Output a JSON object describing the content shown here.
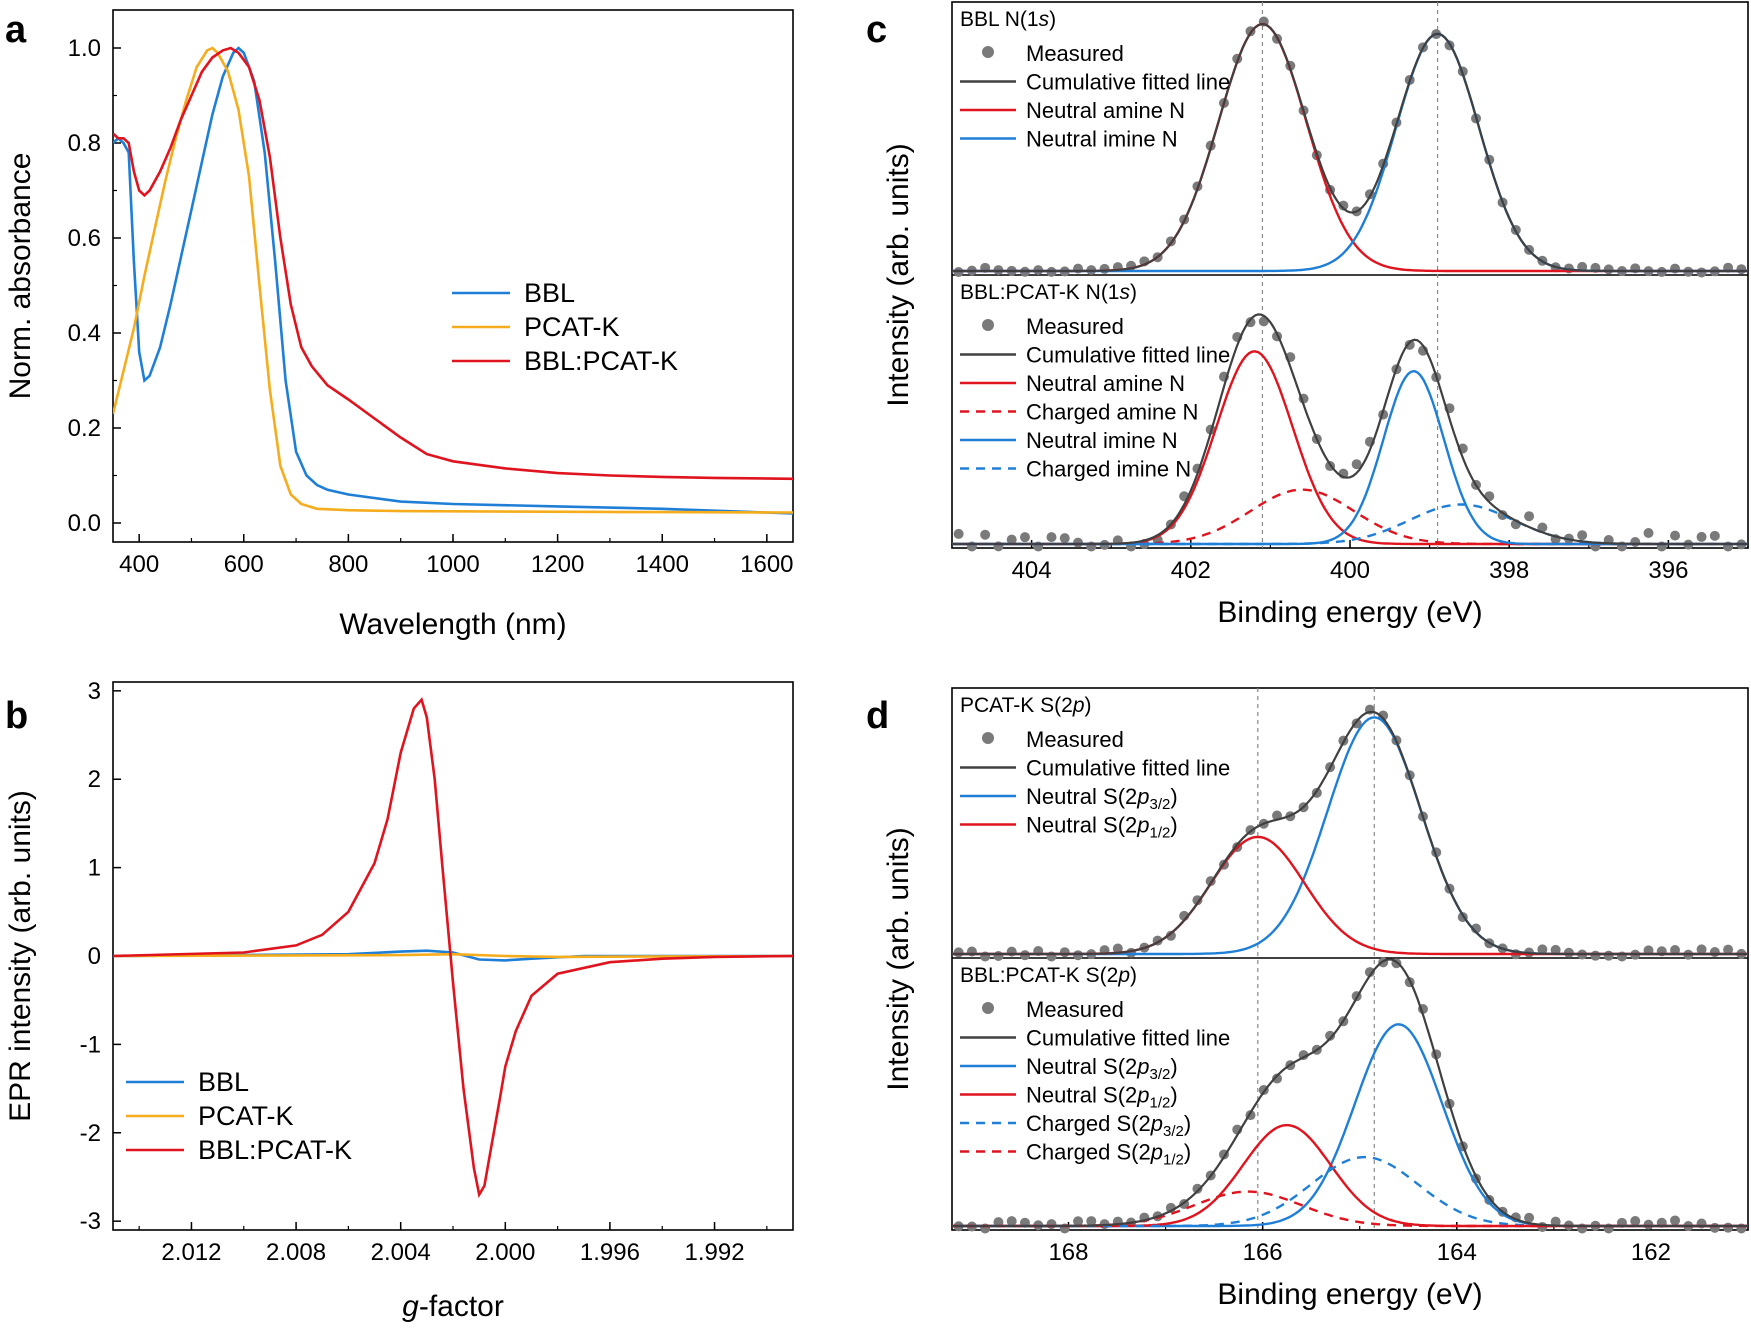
{
  "colors": {
    "blue": "#1f7fd6",
    "orange": "#f5ad1d",
    "red": "#e0141e",
    "dark": "#404040",
    "marker": "#7a7a7a"
  },
  "panels": {
    "a": {
      "label": "a",
      "chart_data": {
        "type": "line",
        "xlabel": "Wavelength (nm)",
        "ylabel": "Norm. absorbance",
        "xlim": [
          350,
          1650
        ],
        "ylim": [
          -0.04,
          1.08
        ],
        "xticks": [
          400,
          600,
          800,
          1000,
          1200,
          1400,
          1600
        ],
        "yticks": [
          0.0,
          0.2,
          0.4,
          0.6,
          0.8,
          1.0
        ],
        "xtick_labels": [
          "400",
          "600",
          "800",
          "1000",
          "1200",
          "1400",
          "1600"
        ],
        "ytick_labels": [
          "0.0",
          "0.2",
          "0.4",
          "0.6",
          "0.8",
          "1.0"
        ],
        "legend": "center-right",
        "series": [
          {
            "name": "BBL",
            "color": "blue",
            "x": [
              350,
              360,
              370,
              380,
              390,
              400,
              410,
              420,
              440,
              460,
              480,
              500,
              520,
              540,
              560,
              580,
              590,
              600,
              620,
              640,
              660,
              680,
              700,
              720,
              740,
              760,
              800,
              900,
              1000,
              1200,
              1400,
              1650
            ],
            "y": [
              0.8,
              0.81,
              0.8,
              0.78,
              0.55,
              0.36,
              0.3,
              0.31,
              0.37,
              0.46,
              0.56,
              0.66,
              0.76,
              0.86,
              0.94,
              0.99,
              1.0,
              0.99,
              0.93,
              0.78,
              0.55,
              0.3,
              0.15,
              0.1,
              0.08,
              0.07,
              0.06,
              0.045,
              0.04,
              0.035,
              0.03,
              0.02
            ]
          },
          {
            "name": "PCAT-K",
            "color": "orange",
            "x": [
              350,
              370,
              390,
              410,
              430,
              450,
              470,
              490,
              510,
              530,
              540,
              550,
              570,
              590,
              610,
              630,
              650,
              670,
              690,
              710,
              740,
              800,
              900,
              1100,
              1400,
              1650
            ],
            "y": [
              0.23,
              0.32,
              0.41,
              0.52,
              0.62,
              0.72,
              0.81,
              0.89,
              0.96,
              0.995,
              1.0,
              0.99,
              0.95,
              0.87,
              0.73,
              0.5,
              0.28,
              0.12,
              0.06,
              0.04,
              0.03,
              0.027,
              0.025,
              0.024,
              0.023,
              0.022
            ]
          },
          {
            "name": "BBL:PCAT-K",
            "color": "red",
            "x": [
              350,
              360,
              370,
              380,
              390,
              400,
              410,
              420,
              440,
              460,
              480,
              500,
              520,
              540,
              560,
              575,
              590,
              610,
              630,
              650,
              670,
              690,
              710,
              730,
              760,
              800,
              850,
              900,
              950,
              1000,
              1100,
              1200,
              1300,
              1400,
              1500,
              1650
            ],
            "y": [
              0.82,
              0.81,
              0.81,
              0.8,
              0.74,
              0.7,
              0.69,
              0.7,
              0.74,
              0.79,
              0.85,
              0.9,
              0.95,
              0.98,
              0.995,
              1.0,
              0.99,
              0.96,
              0.89,
              0.77,
              0.6,
              0.46,
              0.37,
              0.33,
              0.29,
              0.26,
              0.22,
              0.18,
              0.145,
              0.13,
              0.115,
              0.105,
              0.1,
              0.097,
              0.095,
              0.093
            ]
          }
        ]
      }
    },
    "b": {
      "label": "b",
      "chart_data": {
        "type": "line",
        "xlabel_italic": "g",
        "xlabel_rest": "-factor",
        "ylabel": "EPR intensity (arb. units)",
        "xlim": [
          2.015,
          1.989
        ],
        "ylim": [
          -3.1,
          3.1
        ],
        "xticks": [
          2.012,
          2.008,
          2.004,
          2.0,
          1.996,
          1.992
        ],
        "xtick_labels": [
          "2.012",
          "2.008",
          "2.004",
          "2.000",
          "1.996",
          "1.992"
        ],
        "yticks": [
          -3,
          -2,
          -1,
          0,
          1,
          2,
          3
        ],
        "ytick_labels": [
          "-3",
          "-2",
          "-1",
          "0",
          "1",
          "2",
          "3"
        ],
        "legend": "bottom-left",
        "series": [
          {
            "name": "BBL",
            "color": "blue",
            "x": [
              2.015,
              2.006,
              2.004,
              2.003,
              2.002,
              2.001,
              2.0,
              1.999,
              1.997,
              1.989
            ],
            "y": [
              0.0,
              0.02,
              0.05,
              0.06,
              0.04,
              -0.04,
              -0.05,
              -0.03,
              0.0,
              0.0
            ]
          },
          {
            "name": "PCAT-K",
            "color": "orange",
            "x": [
              2.015,
              2.004,
              2.002,
              2.0,
              1.998,
              1.989
            ],
            "y": [
              0.0,
              0.01,
              0.02,
              0.0,
              -0.01,
              0.0
            ]
          },
          {
            "name": "BBL:PCAT-K",
            "color": "red",
            "x": [
              2.015,
              2.01,
              2.008,
              2.007,
              2.006,
              2.005,
              2.0045,
              2.004,
              2.0035,
              2.0032,
              2.003,
              2.0027,
              2.0024,
              2.002,
              2.0016,
              2.0012,
              2.001,
              2.0008,
              2.0005,
              2.0002,
              2.0,
              1.9996,
              1.999,
              1.998,
              1.996,
              1.994,
              1.992,
              1.989
            ],
            "y": [
              0.0,
              0.04,
              0.12,
              0.24,
              0.5,
              1.05,
              1.55,
              2.3,
              2.8,
              2.9,
              2.7,
              2.0,
              1.0,
              -0.3,
              -1.5,
              -2.4,
              -2.7,
              -2.6,
              -2.1,
              -1.6,
              -1.25,
              -0.85,
              -0.45,
              -0.2,
              -0.07,
              -0.03,
              -0.01,
              0.0
            ]
          }
        ]
      }
    },
    "c": {
      "label": "c",
      "chart_data": {
        "type": "scatter",
        "xlabel": "Binding energy (eV)",
        "ylabel": "Intensity (arb. units)",
        "xlim": [
          405,
          395
        ],
        "xticks": [
          404,
          402,
          400,
          398,
          396
        ],
        "xtick_labels": [
          "404",
          "402",
          "400",
          "398",
          "396"
        ],
        "vlines": [
          401.1,
          398.9
        ],
        "legend": "top-left",
        "subplots": [
          {
            "title_pre": "BBL N(1",
            "title_it": "s",
            "title_post": ")",
            "legend": [
              {
                "label": "Measured",
                "kind": "marker",
                "color": "marker"
              },
              {
                "label": "Cumulative fitted line",
                "kind": "line",
                "color": "dark"
              },
              {
                "label": "Neutral amine N",
                "kind": "line",
                "color": "red"
              },
              {
                "label": "Neutral imine N",
                "kind": "line",
                "color": "blue"
              }
            ],
            "components": [
              {
                "name": "Neutral amine N",
                "center": 401.1,
                "height": 1.0,
                "sigma": 0.55,
                "color": "red",
                "dash": false
              },
              {
                "name": "Neutral imine N",
                "center": 398.9,
                "height": 0.96,
                "sigma": 0.52,
                "color": "blue",
                "dash": false
              }
            ],
            "noise": 0.012
          },
          {
            "title_pre": "BBL:PCAT-K N(1",
            "title_it": "s",
            "title_post": ")",
            "legend": [
              {
                "label": "Measured",
                "kind": "marker",
                "color": "marker"
              },
              {
                "label": "Cumulative fitted line",
                "kind": "line",
                "color": "dark"
              },
              {
                "label": "Neutral amine N",
                "kind": "line",
                "color": "red"
              },
              {
                "label": "Charged amine N",
                "kind": "dash",
                "color": "red"
              },
              {
                "label": "Neutral imine N",
                "kind": "line",
                "color": "blue"
              },
              {
                "label": "Charged imine N",
                "kind": "dash",
                "color": "blue"
              }
            ],
            "components": [
              {
                "name": "Neutral amine N",
                "center": 401.2,
                "height": 0.78,
                "sigma": 0.48,
                "color": "red",
                "dash": false
              },
              {
                "name": "Charged amine N",
                "center": 400.6,
                "height": 0.22,
                "sigma": 0.65,
                "color": "red",
                "dash": true
              },
              {
                "name": "Neutral imine N",
                "center": 399.2,
                "height": 0.7,
                "sigma": 0.38,
                "color": "blue",
                "dash": false
              },
              {
                "name": "Charged imine N",
                "center": 398.6,
                "height": 0.16,
                "sigma": 0.65,
                "color": "blue",
                "dash": true
              }
            ],
            "noise": 0.035
          }
        ]
      }
    },
    "d": {
      "label": "d",
      "chart_data": {
        "type": "scatter",
        "xlabel": "Binding energy (eV)",
        "ylabel": "Intensity (arb. units)",
        "xlim": [
          169.2,
          161.0
        ],
        "xticks": [
          168,
          166,
          164,
          162
        ],
        "xtick_labels": [
          "168",
          "166",
          "164",
          "162"
        ],
        "vlines": [
          166.05,
          164.85
        ],
        "legend": "top-left",
        "subplots": [
          {
            "title_pre": "PCAT-K S(2",
            "title_it": "p",
            "title_post": ")",
            "legend": [
              {
                "label": "Measured",
                "kind": "marker",
                "color": "marker"
              },
              {
                "label": "Cumulative fitted line",
                "kind": "line",
                "color": "dark"
              },
              {
                "label": "Neutral S(2p3/2)",
                "text": "Neutral S(2",
                "it": "p",
                "sub": "3/2",
                "close": ")",
                "kind": "line",
                "color": "blue"
              },
              {
                "label": "Neutral S(2p1/2)",
                "text": "Neutral S(2",
                "it": "p",
                "sub": "1/2",
                "close": ")",
                "kind": "line",
                "color": "red"
              }
            ],
            "components": [
              {
                "name": "Neutral S(2p3/2)",
                "center": 164.85,
                "height": 0.97,
                "sigma": 0.48,
                "color": "blue",
                "dash": false
              },
              {
                "name": "Neutral S(2p1/2)",
                "center": 166.05,
                "height": 0.48,
                "sigma": 0.48,
                "color": "red",
                "dash": false
              }
            ],
            "noise": 0.015
          },
          {
            "title_pre": "BBL:PCAT-K S(2",
            "title_it": "p",
            "title_post": ")",
            "legend": [
              {
                "label": "Measured",
                "kind": "marker",
                "color": "marker"
              },
              {
                "label": "Cumulative fitted line",
                "kind": "line",
                "color": "dark"
              },
              {
                "label": "Neutral S(2p3/2)",
                "text": "Neutral S(2",
                "it": "p",
                "sub": "3/2",
                "close": ")",
                "kind": "line",
                "color": "blue"
              },
              {
                "label": "Neutral S(2p1/2)",
                "text": "Neutral S(2",
                "it": "p",
                "sub": "1/2",
                "close": ")",
                "kind": "line",
                "color": "red"
              },
              {
                "label": "Charged S(2p3/2)",
                "text": "Charged S(2",
                "it": "p",
                "sub": "3/2",
                "close": ")",
                "kind": "dash",
                "color": "blue"
              },
              {
                "label": "Charged S(2p1/2)",
                "text": "Charged S(2",
                "it": "p",
                "sub": "1/2",
                "close": ")",
                "kind": "dash",
                "color": "red"
              }
            ],
            "components": [
              {
                "name": "Neutral S(2p3/2)",
                "center": 164.6,
                "height": 0.82,
                "sigma": 0.45,
                "color": "blue",
                "dash": false
              },
              {
                "name": "Neutral S(2p1/2)",
                "center": 165.75,
                "height": 0.41,
                "sigma": 0.45,
                "color": "red",
                "dash": false
              },
              {
                "name": "Charged S(2p3/2)",
                "center": 164.95,
                "height": 0.28,
                "sigma": 0.55,
                "color": "blue",
                "dash": true
              },
              {
                "name": "Charged S(2p1/2)",
                "center": 166.15,
                "height": 0.14,
                "sigma": 0.55,
                "color": "red",
                "dash": true
              }
            ],
            "noise": 0.018
          }
        ]
      }
    }
  }
}
